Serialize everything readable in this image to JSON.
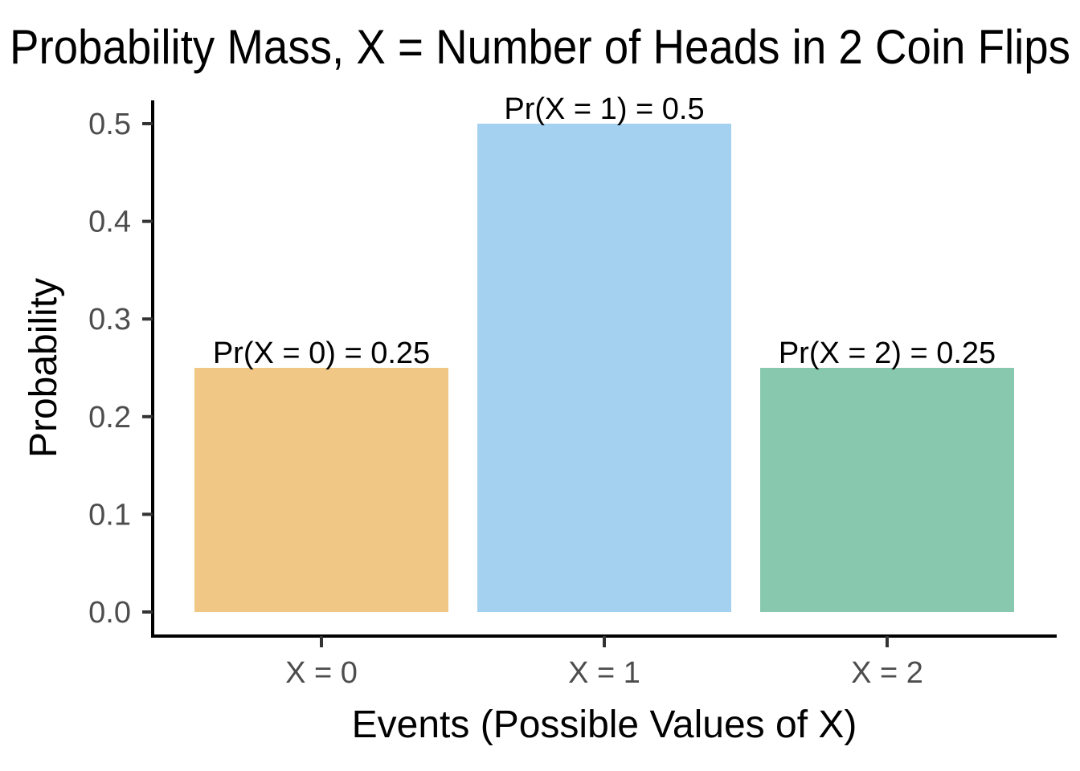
{
  "chart_data": {
    "type": "bar",
    "title": "Probability Mass, X = Number of Heads in 2 Coin Flips",
    "xlabel": "Events (Possible Values of X)",
    "ylabel": "Probability",
    "categories": [
      "X = 0",
      "X = 1",
      "X = 2"
    ],
    "values": [
      0.25,
      0.5,
      0.25
    ],
    "data_labels": [
      "Pr(X = 0) = 0.25",
      "Pr(X = 1) = 0.5",
      "Pr(X = 2) = 0.25"
    ],
    "colors": [
      "#F0C785",
      "#A5D1F0",
      "#88C8AE"
    ],
    "ylim": [
      0,
      0.5
    ],
    "y_ticks": [
      0.0,
      0.1,
      0.2,
      0.3,
      0.4,
      0.5
    ],
    "y_tick_labels": [
      "0.0",
      "0.1",
      "0.2",
      "0.3",
      "0.4",
      "0.5"
    ],
    "grid": false,
    "legend": "none"
  }
}
